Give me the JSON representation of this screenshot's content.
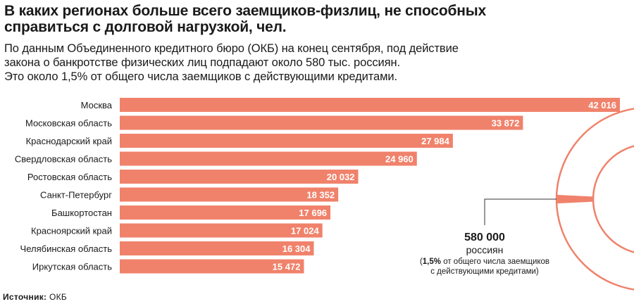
{
  "title_lines": [
    "В каких регионах больше всего заемщиков-физлиц, не способных",
    "справиться с долговой нагрузкой, чел."
  ],
  "subtitle_lines": [
    "По данным Объединенного кредитного бюро (ОКБ) на конец сентября, под действие",
    "закона о банкротстве физических лиц подпадают около 580 тыс. россиян.",
    "Это около 1,5% от общего числа заемщиков с действующими кредитами."
  ],
  "colors": {
    "bar": "#f0826b",
    "circle": "#f0826b",
    "text": "#1a1a1a",
    "bar_label": "#ffffff",
    "leader": "#333333"
  },
  "chart_data": {
    "type": "bar",
    "orientation": "horizontal",
    "categories": [
      "Москва",
      "Московская область",
      "Краснодарский край",
      "Свердловская область",
      "Ростовская область",
      "Санкт-Петербург",
      "Башкортостан",
      "Красноярский край",
      "Челябинская область",
      "Иркутская область"
    ],
    "values": [
      42016,
      33872,
      27984,
      24960,
      20032,
      18352,
      17696,
      17024,
      16304,
      15472
    ],
    "value_labels": [
      "42 016",
      "33 872",
      "27 984",
      "24 960",
      "20 032",
      "18 352",
      "17 696",
      "17 024",
      "16 304",
      "15 472"
    ],
    "xlim": [
      0,
      42016
    ],
    "grid": false,
    "legend": "none",
    "annotation": {
      "value": "580 000",
      "unit": "россиян",
      "note_bold": "1,5%",
      "note_lines": [
        "(1,5% от общего числа заемщиков",
        "с действующими кредитами)"
      ],
      "share_percent": 1.5
    }
  },
  "source": {
    "label": "Источник:",
    "value": "ОКБ"
  }
}
